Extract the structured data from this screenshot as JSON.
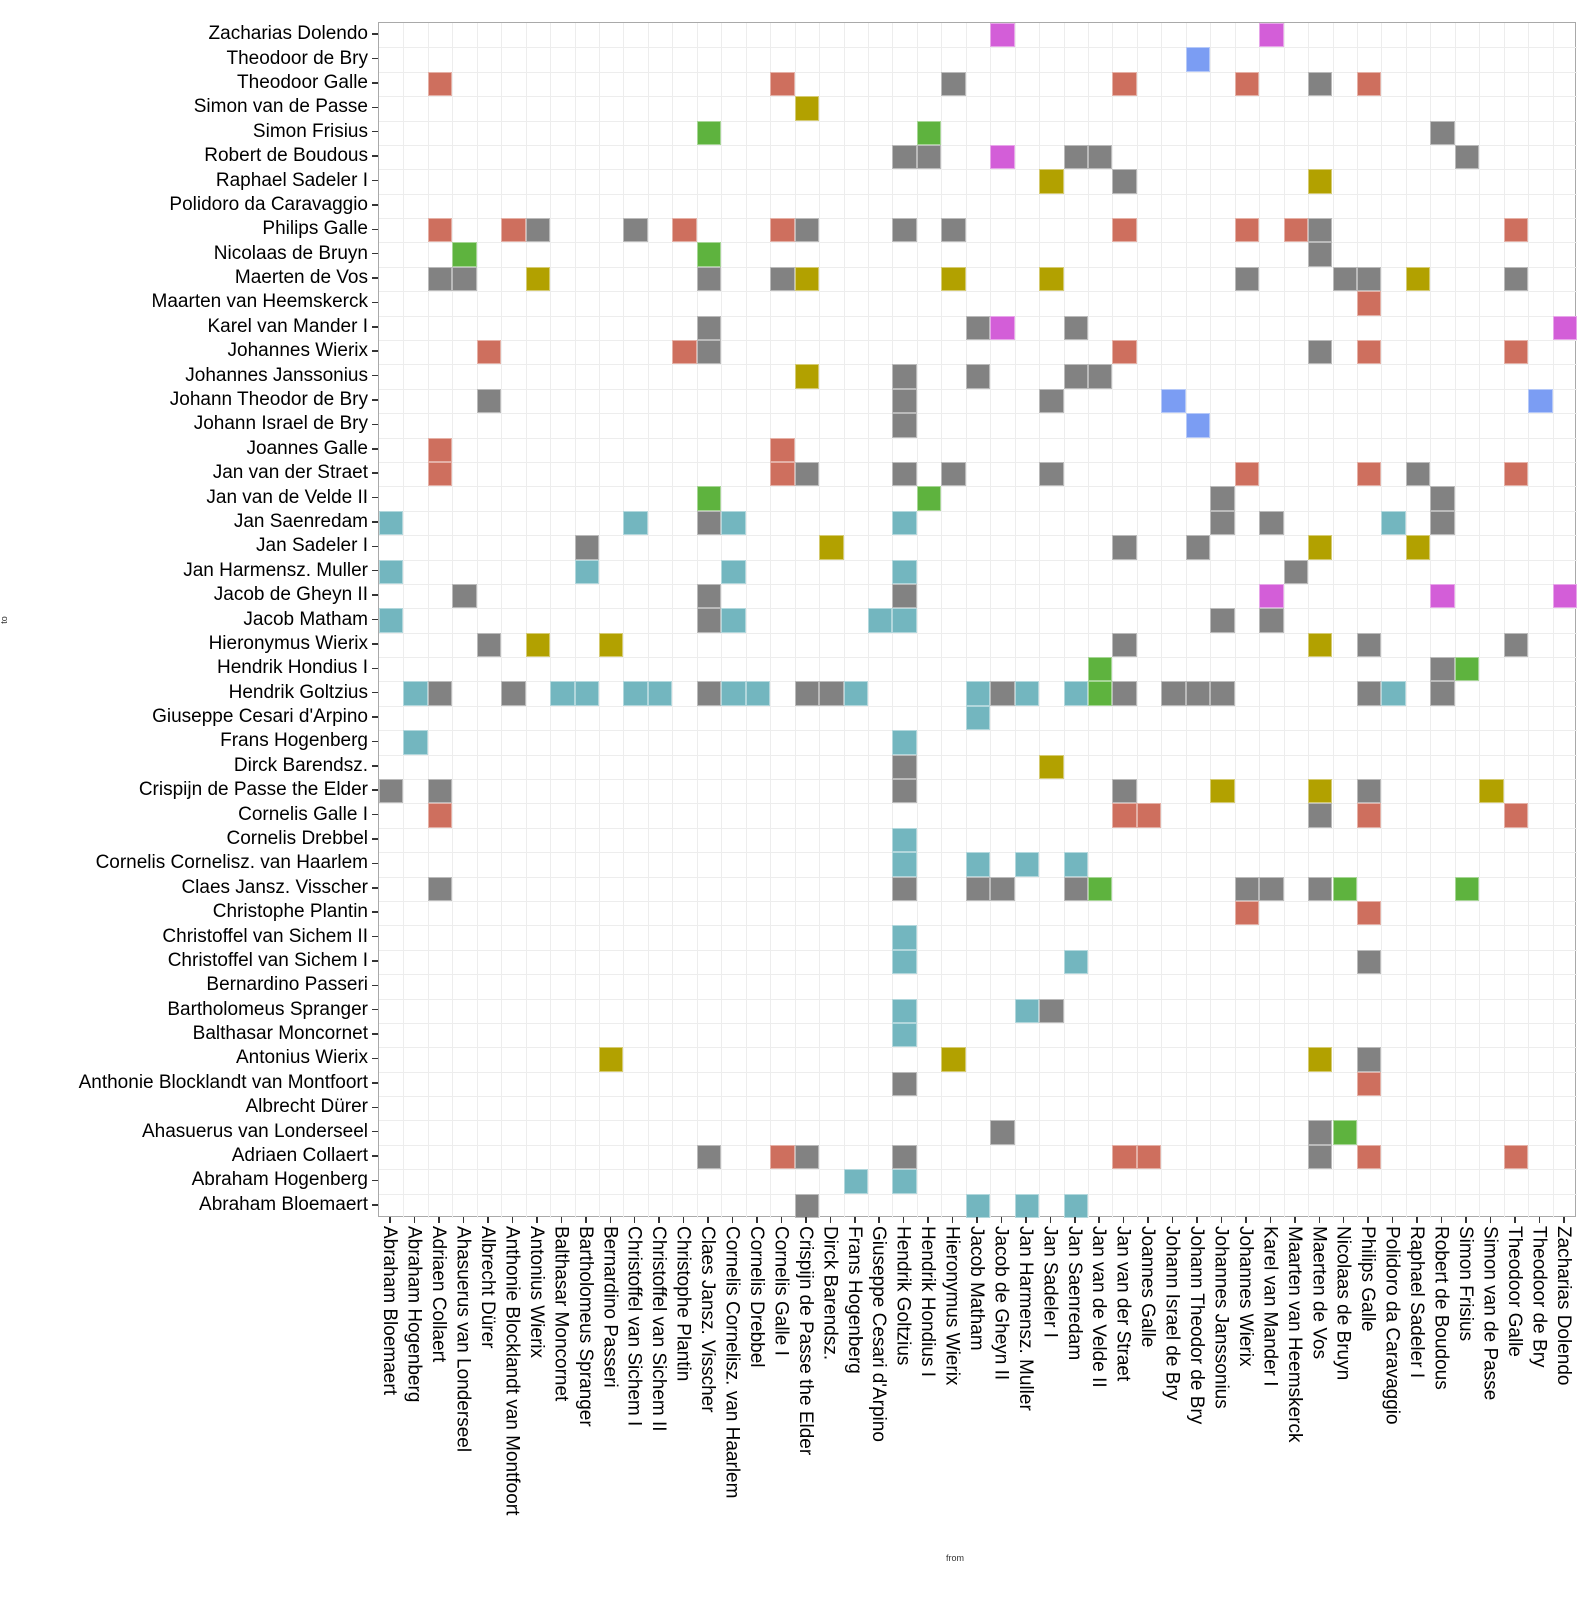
{
  "chart_data": {
    "type": "heatmap",
    "title": "",
    "xlabel": "from",
    "ylabel": "to",
    "x_order": "names ascending (left to right)",
    "y_order": "names descending (top to bottom)",
    "grid": true,
    "legend": "none",
    "names": [
      "Abraham Bloemaert",
      "Abraham Hogenberg",
      "Adriaen Collaert",
      "Ahasuerus van Londerseel",
      "Albrecht Dürer",
      "Anthonie Blocklandt van Montfoort",
      "Antonius Wierix",
      "Balthasar Moncornet",
      "Bartholomeus Spranger",
      "Bernardino Passeri",
      "Christoffel van Sichem I",
      "Christoffel van Sichem II",
      "Christophe Plantin",
      "Claes Jansz. Visscher",
      "Cornelis Cornelisz. van Haarlem",
      "Cornelis Drebbel",
      "Cornelis Galle I",
      "Crispijn de Passe the Elder",
      "Dirck Barendsz.",
      "Frans Hogenberg",
      "Giuseppe Cesari d'Arpino",
      "Hendrik Goltzius",
      "Hendrik Hondius I",
      "Hieronymus Wierix",
      "Jacob Matham",
      "Jacob de Gheyn II",
      "Jan Harmensz. Muller",
      "Jan Sadeler I",
      "Jan Saenredam",
      "Jan van de Velde II",
      "Jan van der Straet",
      "Joannes Galle",
      "Johann Israel de Bry",
      "Johann Theodor de Bry",
      "Johannes Janssonius",
      "Johannes Wierix",
      "Karel van Mander I",
      "Maarten van Heemskerck",
      "Maerten de Vos",
      "Nicolaas de Bruyn",
      "Philips Galle",
      "Polidoro da Caravaggio",
      "Raphael Sadeler I",
      "Robert de Boudous",
      "Simon Frisius",
      "Simon van de Passe",
      "Theodoor Galle",
      "Theodoor de Bry",
      "Zacharias Dolendo"
    ],
    "palette": {
      "grey": "#828282",
      "red": "#CE6F5E",
      "teal": "#73B6BF",
      "olive": "#B2A100",
      "green": "#5EB33E",
      "magenta": "#D35ED8",
      "blue": "#7B9DF3"
    },
    "cells": [
      [
        48,
        25,
        "magenta"
      ],
      [
        48,
        36,
        "magenta"
      ],
      [
        47,
        33,
        "blue"
      ],
      [
        46,
        2,
        "red"
      ],
      [
        46,
        16,
        "red"
      ],
      [
        46,
        23,
        "grey"
      ],
      [
        46,
        30,
        "red"
      ],
      [
        46,
        35,
        "red"
      ],
      [
        46,
        38,
        "grey"
      ],
      [
        46,
        40,
        "red"
      ],
      [
        45,
        17,
        "olive"
      ],
      [
        44,
        13,
        "green"
      ],
      [
        44,
        22,
        "green"
      ],
      [
        44,
        43,
        "grey"
      ],
      [
        43,
        21,
        "grey"
      ],
      [
        43,
        22,
        "grey"
      ],
      [
        43,
        25,
        "magenta"
      ],
      [
        43,
        28,
        "grey"
      ],
      [
        43,
        29,
        "grey"
      ],
      [
        43,
        44,
        "grey"
      ],
      [
        42,
        27,
        "olive"
      ],
      [
        42,
        30,
        "grey"
      ],
      [
        42,
        38,
        "olive"
      ],
      [
        40,
        2,
        "red"
      ],
      [
        40,
        5,
        "red"
      ],
      [
        40,
        6,
        "grey"
      ],
      [
        40,
        10,
        "grey"
      ],
      [
        40,
        12,
        "red"
      ],
      [
        40,
        16,
        "red"
      ],
      [
        40,
        17,
        "grey"
      ],
      [
        40,
        21,
        "grey"
      ],
      [
        40,
        23,
        "grey"
      ],
      [
        40,
        30,
        "red"
      ],
      [
        40,
        35,
        "red"
      ],
      [
        40,
        37,
        "red"
      ],
      [
        40,
        38,
        "grey"
      ],
      [
        40,
        46,
        "red"
      ],
      [
        39,
        3,
        "green"
      ],
      [
        39,
        13,
        "green"
      ],
      [
        39,
        38,
        "grey"
      ],
      [
        38,
        2,
        "grey"
      ],
      [
        38,
        3,
        "grey"
      ],
      [
        38,
        6,
        "olive"
      ],
      [
        38,
        13,
        "grey"
      ],
      [
        38,
        16,
        "grey"
      ],
      [
        38,
        17,
        "olive"
      ],
      [
        38,
        23,
        "olive"
      ],
      [
        38,
        27,
        "olive"
      ],
      [
        38,
        35,
        "grey"
      ],
      [
        38,
        39,
        "grey"
      ],
      [
        38,
        40,
        "grey"
      ],
      [
        38,
        42,
        "olive"
      ],
      [
        38,
        46,
        "grey"
      ],
      [
        37,
        40,
        "red"
      ],
      [
        36,
        13,
        "grey"
      ],
      [
        36,
        24,
        "grey"
      ],
      [
        36,
        25,
        "magenta"
      ],
      [
        36,
        28,
        "grey"
      ],
      [
        36,
        48,
        "magenta"
      ],
      [
        35,
        4,
        "red"
      ],
      [
        35,
        12,
        "red"
      ],
      [
        35,
        13,
        "grey"
      ],
      [
        35,
        30,
        "red"
      ],
      [
        35,
        38,
        "grey"
      ],
      [
        35,
        40,
        "red"
      ],
      [
        35,
        46,
        "red"
      ],
      [
        34,
        17,
        "olive"
      ],
      [
        34,
        21,
        "grey"
      ],
      [
        34,
        24,
        "grey"
      ],
      [
        34,
        28,
        "grey"
      ],
      [
        34,
        29,
        "grey"
      ],
      [
        33,
        4,
        "grey"
      ],
      [
        33,
        21,
        "grey"
      ],
      [
        33,
        27,
        "grey"
      ],
      [
        33,
        32,
        "blue"
      ],
      [
        33,
        47,
        "blue"
      ],
      [
        32,
        21,
        "grey"
      ],
      [
        32,
        33,
        "blue"
      ],
      [
        31,
        2,
        "red"
      ],
      [
        31,
        16,
        "red"
      ],
      [
        30,
        2,
        "red"
      ],
      [
        30,
        16,
        "red"
      ],
      [
        30,
        17,
        "grey"
      ],
      [
        30,
        21,
        "grey"
      ],
      [
        30,
        23,
        "grey"
      ],
      [
        30,
        27,
        "grey"
      ],
      [
        30,
        35,
        "red"
      ],
      [
        30,
        40,
        "red"
      ],
      [
        30,
        42,
        "grey"
      ],
      [
        30,
        46,
        "red"
      ],
      [
        29,
        13,
        "green"
      ],
      [
        29,
        22,
        "green"
      ],
      [
        29,
        34,
        "grey"
      ],
      [
        29,
        43,
        "grey"
      ],
      [
        28,
        0,
        "teal"
      ],
      [
        28,
        10,
        "teal"
      ],
      [
        28,
        13,
        "grey"
      ],
      [
        28,
        14,
        "teal"
      ],
      [
        28,
        21,
        "teal"
      ],
      [
        28,
        34,
        "grey"
      ],
      [
        28,
        36,
        "grey"
      ],
      [
        28,
        41,
        "teal"
      ],
      [
        28,
        43,
        "grey"
      ],
      [
        27,
        8,
        "grey"
      ],
      [
        27,
        18,
        "olive"
      ],
      [
        27,
        30,
        "grey"
      ],
      [
        27,
        33,
        "grey"
      ],
      [
        27,
        38,
        "olive"
      ],
      [
        27,
        42,
        "olive"
      ],
      [
        26,
        0,
        "teal"
      ],
      [
        26,
        8,
        "teal"
      ],
      [
        26,
        14,
        "teal"
      ],
      [
        26,
        21,
        "teal"
      ],
      [
        26,
        37,
        "grey"
      ],
      [
        25,
        3,
        "grey"
      ],
      [
        25,
        13,
        "grey"
      ],
      [
        25,
        21,
        "grey"
      ],
      [
        25,
        36,
        "magenta"
      ],
      [
        25,
        43,
        "magenta"
      ],
      [
        25,
        48,
        "magenta"
      ],
      [
        24,
        0,
        "teal"
      ],
      [
        24,
        13,
        "grey"
      ],
      [
        24,
        14,
        "teal"
      ],
      [
        24,
        20,
        "teal"
      ],
      [
        24,
        21,
        "teal"
      ],
      [
        24,
        34,
        "grey"
      ],
      [
        24,
        36,
        "grey"
      ],
      [
        23,
        4,
        "grey"
      ],
      [
        23,
        6,
        "olive"
      ],
      [
        23,
        9,
        "olive"
      ],
      [
        23,
        30,
        "grey"
      ],
      [
        23,
        38,
        "olive"
      ],
      [
        23,
        40,
        "grey"
      ],
      [
        23,
        46,
        "grey"
      ],
      [
        22,
        29,
        "green"
      ],
      [
        22,
        43,
        "grey"
      ],
      [
        22,
        44,
        "green"
      ],
      [
        21,
        1,
        "teal"
      ],
      [
        21,
        2,
        "grey"
      ],
      [
        21,
        5,
        "grey"
      ],
      [
        21,
        7,
        "teal"
      ],
      [
        21,
        8,
        "teal"
      ],
      [
        21,
        10,
        "teal"
      ],
      [
        21,
        11,
        "teal"
      ],
      [
        21,
        13,
        "grey"
      ],
      [
        21,
        14,
        "teal"
      ],
      [
        21,
        15,
        "teal"
      ],
      [
        21,
        17,
        "grey"
      ],
      [
        21,
        18,
        "grey"
      ],
      [
        21,
        19,
        "teal"
      ],
      [
        21,
        24,
        "teal"
      ],
      [
        21,
        25,
        "grey"
      ],
      [
        21,
        26,
        "teal"
      ],
      [
        21,
        28,
        "teal"
      ],
      [
        21,
        29,
        "green"
      ],
      [
        21,
        30,
        "grey"
      ],
      [
        21,
        32,
        "grey"
      ],
      [
        21,
        33,
        "grey"
      ],
      [
        21,
        34,
        "grey"
      ],
      [
        21,
        40,
        "grey"
      ],
      [
        21,
        41,
        "teal"
      ],
      [
        21,
        43,
        "grey"
      ],
      [
        20,
        24,
        "teal"
      ],
      [
        19,
        1,
        "teal"
      ],
      [
        19,
        21,
        "teal"
      ],
      [
        18,
        21,
        "grey"
      ],
      [
        18,
        27,
        "olive"
      ],
      [
        17,
        0,
        "grey"
      ],
      [
        17,
        2,
        "grey"
      ],
      [
        17,
        21,
        "grey"
      ],
      [
        17,
        30,
        "grey"
      ],
      [
        17,
        34,
        "olive"
      ],
      [
        17,
        38,
        "olive"
      ],
      [
        17,
        40,
        "grey"
      ],
      [
        17,
        45,
        "olive"
      ],
      [
        16,
        2,
        "red"
      ],
      [
        16,
        30,
        "red"
      ],
      [
        16,
        31,
        "red"
      ],
      [
        16,
        38,
        "grey"
      ],
      [
        16,
        40,
        "red"
      ],
      [
        16,
        46,
        "red"
      ],
      [
        15,
        21,
        "teal"
      ],
      [
        14,
        21,
        "teal"
      ],
      [
        14,
        24,
        "teal"
      ],
      [
        14,
        26,
        "teal"
      ],
      [
        14,
        28,
        "teal"
      ],
      [
        13,
        2,
        "grey"
      ],
      [
        13,
        21,
        "grey"
      ],
      [
        13,
        24,
        "grey"
      ],
      [
        13,
        25,
        "grey"
      ],
      [
        13,
        28,
        "grey"
      ],
      [
        13,
        29,
        "green"
      ],
      [
        13,
        35,
        "grey"
      ],
      [
        13,
        36,
        "grey"
      ],
      [
        13,
        38,
        "grey"
      ],
      [
        13,
        39,
        "green"
      ],
      [
        13,
        44,
        "green"
      ],
      [
        12,
        35,
        "red"
      ],
      [
        12,
        40,
        "red"
      ],
      [
        11,
        21,
        "teal"
      ],
      [
        10,
        21,
        "teal"
      ],
      [
        10,
        28,
        "teal"
      ],
      [
        10,
        40,
        "grey"
      ],
      [
        8,
        21,
        "teal"
      ],
      [
        8,
        26,
        "teal"
      ],
      [
        8,
        27,
        "grey"
      ],
      [
        7,
        21,
        "teal"
      ],
      [
        6,
        9,
        "olive"
      ],
      [
        6,
        23,
        "olive"
      ],
      [
        6,
        38,
        "olive"
      ],
      [
        6,
        40,
        "grey"
      ],
      [
        5,
        21,
        "grey"
      ],
      [
        5,
        40,
        "red"
      ],
      [
        3,
        25,
        "grey"
      ],
      [
        3,
        38,
        "grey"
      ],
      [
        3,
        39,
        "green"
      ],
      [
        2,
        13,
        "grey"
      ],
      [
        2,
        16,
        "red"
      ],
      [
        2,
        17,
        "grey"
      ],
      [
        2,
        21,
        "grey"
      ],
      [
        2,
        30,
        "red"
      ],
      [
        2,
        31,
        "red"
      ],
      [
        2,
        38,
        "grey"
      ],
      [
        2,
        40,
        "red"
      ],
      [
        2,
        46,
        "red"
      ],
      [
        1,
        19,
        "teal"
      ],
      [
        1,
        21,
        "teal"
      ],
      [
        0,
        17,
        "grey"
      ],
      [
        0,
        24,
        "teal"
      ],
      [
        0,
        26,
        "teal"
      ],
      [
        0,
        28,
        "teal"
      ]
    ]
  }
}
